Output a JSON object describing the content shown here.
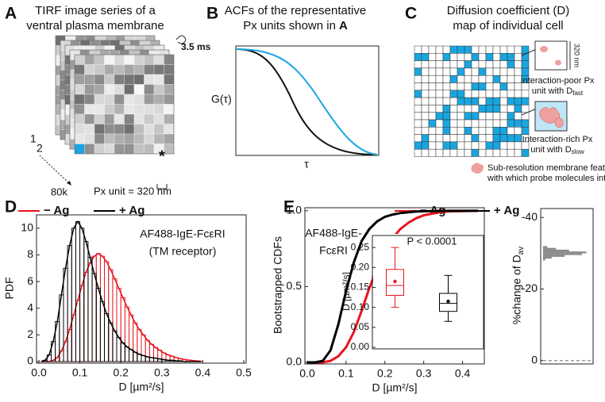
{
  "panel_a": {
    "letter": "A",
    "title": [
      "TIRF image series of a",
      "ventral plasma membrane"
    ],
    "frame_interval": "3.5 ms",
    "frame_labels": [
      "1",
      "2"
    ],
    "frame_count": "80k",
    "px_unit": "Px unit = 320 nm",
    "marker": "*"
  },
  "panel_b": {
    "letter": "B",
    "title": [
      "ACFs of the representative",
      "Px units shown in"
    ],
    "title_ref": "A",
    "ylabel": "G(τ)",
    "xlabel": "τ"
  },
  "panel_c": {
    "letter": "C",
    "title": [
      "Diffusion coefficient (D)",
      "map of individual cell"
    ],
    "scale": "320 nm",
    "poor": [
      "Interaction-poor Px",
      "unit with D"
    ],
    "poor_sub": "fast",
    "rich": [
      "Interaction-rich Px",
      "unit with D"
    ],
    "rich_sub": "slow",
    "features": [
      "Sub-resolution membrane features",
      "with which probe molecules interact"
    ]
  },
  "chart_data": [
    {
      "type": "histogram",
      "panel": "D",
      "xlabel": "D [µm²/s]",
      "ylabel": "PDF",
      "annotation": [
        "AF488-IgE-FcεRI",
        "(TM receptor)"
      ],
      "bins": [
        0,
        0.01,
        0.02,
        0.03,
        0.04,
        0.05,
        0.06,
        0.07,
        0.08,
        0.09,
        0.1,
        0.11,
        0.12,
        0.13,
        0.14,
        0.15,
        0.16,
        0.17,
        0.18,
        0.19,
        0.2,
        0.21,
        0.22,
        0.23,
        0.24,
        0.25,
        0.26,
        0.27,
        0.28,
        0.29,
        0.3,
        0.31,
        0.32,
        0.33,
        0.34,
        0.35,
        0.36,
        0.37,
        0.38,
        0.39,
        0.4
      ],
      "series": [
        {
          "name": "− Ag",
          "color": "#e8141c",
          "values": [
            0,
            0,
            0,
            0.1,
            0.3,
            0.8,
            1.5,
            2.4,
            3.5,
            4.6,
            5.7,
            6.7,
            7.4,
            7.9,
            8.1,
            7.9,
            7.5,
            6.9,
            6.2,
            5.5,
            4.8,
            4.1,
            3.5,
            2.9,
            2.4,
            2,
            1.6,
            1.3,
            1.05,
            0.85,
            0.65,
            0.5,
            0.4,
            0.3,
            0.22,
            0.16,
            0.12,
            0.08,
            0.05,
            0.03
          ]
        },
        {
          "name": "+ Ag",
          "color": "#000000",
          "values": [
            0,
            0.1,
            0.5,
            1.5,
            3,
            5,
            7,
            8.7,
            10,
            10.5,
            10,
            9,
            7.8,
            6.6,
            5.5,
            4.5,
            3.6,
            2.9,
            2.3,
            1.8,
            1.4,
            1.1,
            0.9,
            0.7,
            0.55,
            0.45,
            0.35,
            0.3,
            0.25,
            0.2,
            0.15,
            0.1,
            0.1,
            0.05,
            0.05,
            0,
            0,
            0,
            0,
            0
          ]
        }
      ],
      "xlim": [
        0,
        0.5
      ],
      "ylim": [
        0,
        11
      ],
      "xticks": [
        {
          "value": 0,
          "label": "0.0"
        },
        0.1,
        0.2,
        0.3,
        0.4,
        0.5
      ],
      "yticks": [
        0,
        2,
        4,
        6,
        8,
        10
      ]
    },
    {
      "type": "line",
      "panel": "E",
      "xlabel": "D [µm²/s]",
      "ylabel": "Bootstrapped CDFs",
      "annotation": [
        "AF488-IgE-",
        "FcεRI"
      ],
      "x": [
        0,
        0.02,
        0.04,
        0.06,
        0.08,
        0.1,
        0.12,
        0.14,
        0.16,
        0.18,
        0.2,
        0.22,
        0.24,
        0.26,
        0.28,
        0.3,
        0.32,
        0.34,
        0.36,
        0.38,
        0.4,
        0.42,
        0.44
      ],
      "series": [
        {
          "name": "− Ag",
          "color": "#e8141c",
          "values": [
            0,
            0,
            0,
            0.01,
            0.04,
            0.1,
            0.2,
            0.34,
            0.49,
            0.62,
            0.73,
            0.82,
            0.88,
            0.92,
            0.95,
            0.97,
            0.98,
            0.99,
            0.995,
            0.997,
            0.998,
            0.999,
            1
          ]
        },
        {
          "name": "+ Ag",
          "color": "#000000",
          "values": [
            0,
            0,
            0.01,
            0.08,
            0.25,
            0.47,
            0.66,
            0.8,
            0.88,
            0.93,
            0.96,
            0.975,
            0.985,
            0.99,
            0.995,
            0.997,
            0.998,
            0.999,
            1,
            1,
            1,
            1,
            1
          ]
        }
      ],
      "xlim": [
        0,
        0.45
      ],
      "ylim": [
        0,
        1.02
      ],
      "xticks": [
        {
          "value": 0,
          "label": "0.0"
        },
        0.1,
        0.2,
        0.3,
        0.4
      ],
      "yticks": [
        {
          "value": 0,
          "label": "0.0"
        },
        0.5,
        {
          "value": 1,
          "label": "1.0"
        }
      ]
    },
    {
      "type": "box",
      "title": "P < 0.0001",
      "ylabel": "D [µm²/s]",
      "categories": [
        null,
        null
      ],
      "boxes": [
        {
          "color": "#e8141c",
          "whislo": 0.1,
          "q1": 0.13,
          "median": 0.155,
          "q3": 0.195,
          "whishi": 0.25,
          "mean": 0.165
        },
        {
          "color": "#000000",
          "whislo": 0.065,
          "q1": 0.09,
          "median": 0.11,
          "q3": 0.135,
          "whishi": 0.18,
          "mean": 0.115
        }
      ],
      "ylim": [
        0,
        0.28
      ],
      "yticks": [
        {
          "value": 0,
          "label": "0.00"
        },
        0.05,
        {
          "value": 0.1,
          "label": "0.10"
        },
        0.15,
        {
          "value": 0.2,
          "label": "0.20"
        },
        0.25
      ]
    },
    {
      "type": "histogram",
      "orientation": "horizontal",
      "ylabel": "%change of D",
      "ylabel_sub": "av",
      "bins": [
        -32,
        -31.5,
        -31,
        -30.5,
        -30,
        -29.5,
        -29,
        -28.5,
        -28
      ],
      "values": [
        0.1,
        0.3,
        0.6,
        1,
        0.9,
        0.5,
        0.2,
        0.05
      ],
      "color": "#8a8a8a",
      "xlim": [
        0,
        1.1
      ],
      "ylim": [
        -42.5,
        0.5
      ],
      "inverted": true,
      "yticks": [
        -40,
        -20,
        0
      ],
      "reference_line": 0
    }
  ]
}
